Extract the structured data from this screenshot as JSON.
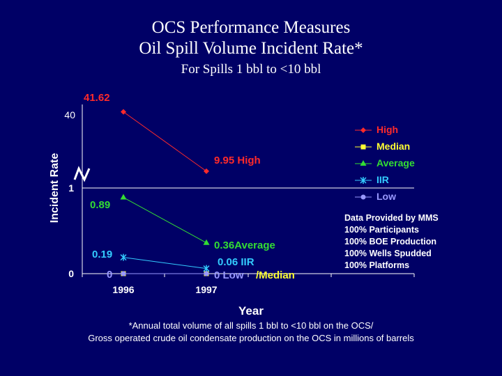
{
  "titles": {
    "line1": "OCS Performance Measures",
    "line2": "Oil Spill Volume Incident Rate*",
    "line3": "For Spills 1 bbl to <10 bbl"
  },
  "notes": {
    "line1": "*Annual total volume of  all spills 1 bbl to <10 bbl on the OCS/",
    "line2": "Gross operated crude oil condensate production on the OCS in millions of barrels"
  },
  "provided": [
    "Data Provided by MMS",
    "100% Participants",
    "100% BOE Production",
    "100% Wells Spudded",
    "100% Platforms"
  ],
  "colors": {
    "background": "#000066",
    "High": "#ff2a2a",
    "Median": "#ffff33",
    "Average": "#33dd33",
    "IIR": "#33ccff",
    "Low": "#9999ff"
  },
  "chart_data": {
    "type": "line",
    "xlabel": "Year",
    "ylabel": "Incident Rate",
    "categories": [
      "1996",
      "1997"
    ],
    "y_ticks": [
      "0",
      "1",
      "40"
    ],
    "axis_break": true,
    "legend_position": "right",
    "series": [
      {
        "name": "High",
        "values": [
          41.62,
          9.95
        ],
        "marker": "diamond",
        "labels": [
          "41.62",
          "9.95 High"
        ]
      },
      {
        "name": "Median",
        "values": [
          0,
          0
        ],
        "marker": "square",
        "labels": [
          "",
          "/Median"
        ]
      },
      {
        "name": "Average",
        "values": [
          0.89,
          0.36
        ],
        "marker": "triangle",
        "labels": [
          "0.89",
          "0.36Average"
        ]
      },
      {
        "name": "IIR",
        "values": [
          0.19,
          0.06
        ],
        "marker": "star",
        "labels": [
          "0.19",
          "0.06 IIR"
        ]
      },
      {
        "name": "Low",
        "values": [
          0,
          0
        ],
        "marker": "circle",
        "labels": [
          "0",
          "0 Low"
        ]
      }
    ]
  }
}
